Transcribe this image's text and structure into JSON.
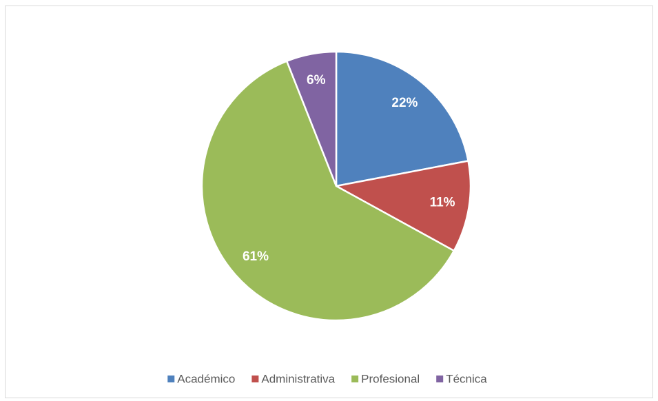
{
  "chart_data": {
    "type": "pie",
    "categories": [
      "Académico",
      "Administrativa",
      "Profesional",
      "Técnica"
    ],
    "values": [
      22,
      11,
      61,
      6
    ],
    "value_labels": [
      "22%",
      "11%",
      "61%",
      "6%"
    ],
    "colors": [
      "#4f81bd",
      "#c0504d",
      "#9bbb59",
      "#8064a2"
    ],
    "legend": "bottom"
  }
}
